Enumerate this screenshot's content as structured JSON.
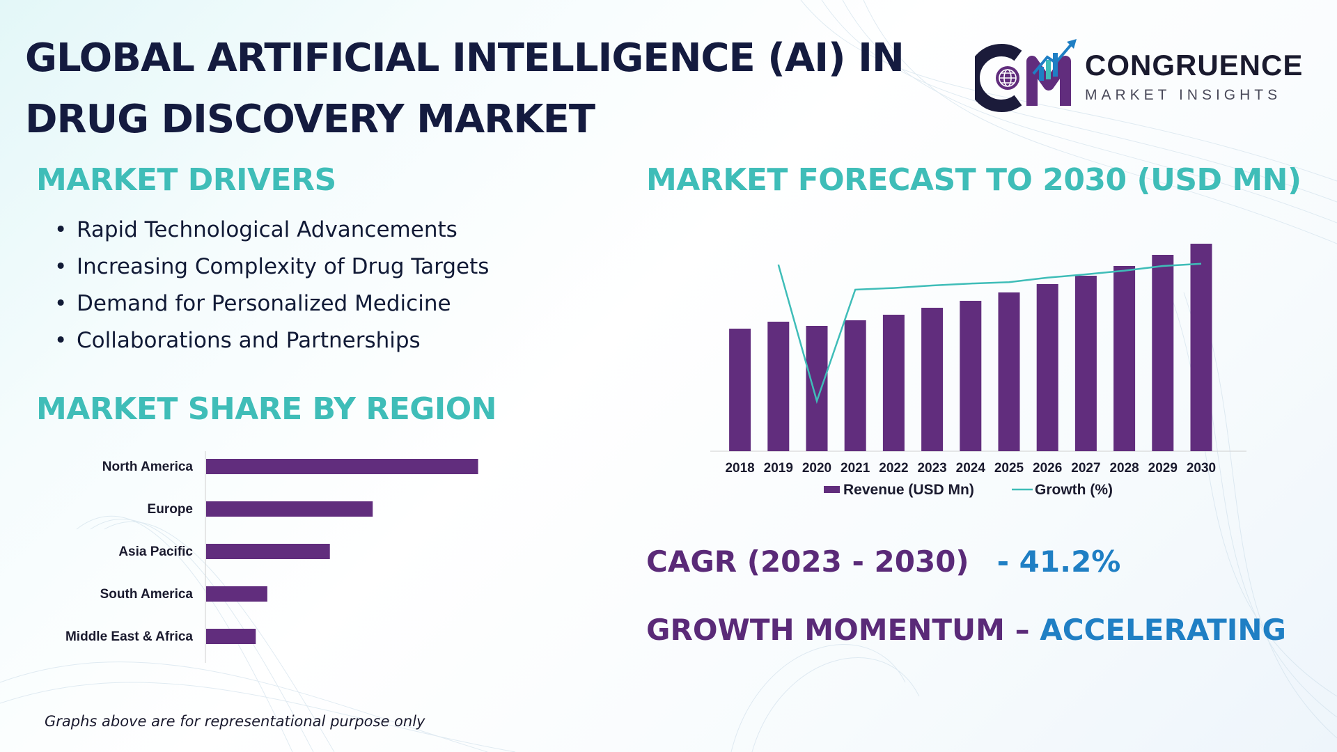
{
  "title": "GLOBAL ARTIFICIAL INTELLIGENCE (AI) IN DRUG DISCOVERY MARKET",
  "logo": {
    "name": "CONGRUENCE",
    "tagline": "MARKET INSIGHTS"
  },
  "drivers": {
    "heading": "MARKET DRIVERS",
    "items": [
      "Rapid Technological Advancements",
      "Increasing Complexity of Drug Targets",
      "Demand for Personalized Medicine",
      "Collaborations and Partnerships"
    ]
  },
  "region": {
    "heading": "MARKET SHARE BY REGION"
  },
  "forecast": {
    "heading": "MARKET FORECAST TO 2030 (USD MN)"
  },
  "cagr": {
    "label": "CAGR (2023 - 2030)",
    "value": "- 41.2%"
  },
  "momentum": {
    "label": "GROWTH MOMENTUM – ",
    "value": "ACCELERATING"
  },
  "footnote": "Graphs above are for representational purpose only",
  "colors": {
    "teal": "#3fbdb8",
    "purple": "#612d7d",
    "navy": "#141b3f",
    "blue": "#1f7fc4"
  },
  "chart_data": [
    {
      "type": "bar",
      "orientation": "horizontal",
      "categories": [
        "North America",
        "Europe",
        "Asia Pacific",
        "South America",
        "Middle East & Africa"
      ],
      "values": [
        40,
        24.5,
        18.2,
        9,
        7.3
      ],
      "legend": "none",
      "grid": false
    },
    {
      "type": "bar",
      "categories": [
        "2018",
        "2019",
        "2020",
        "2021",
        "2022",
        "2023",
        "2024",
        "2025",
        "2026",
        "2027",
        "2028",
        "2029",
        "2030"
      ],
      "series": [
        {
          "name": "Revenue (USD Mn)",
          "type": "bar",
          "values": [
            44,
            46.5,
            45,
            47,
            49,
            51.5,
            54,
            57,
            60,
            63,
            66.5,
            70.5,
            74.5
          ]
        },
        {
          "name": "Growth (%)",
          "type": "line",
          "values": [
            null,
            67,
            18,
            58,
            58.6,
            59.5,
            60.2,
            60.7,
            62.3,
            63.5,
            64.8,
            66.5,
            67.3
          ]
        }
      ],
      "legend": "bottom",
      "grid": false
    }
  ]
}
